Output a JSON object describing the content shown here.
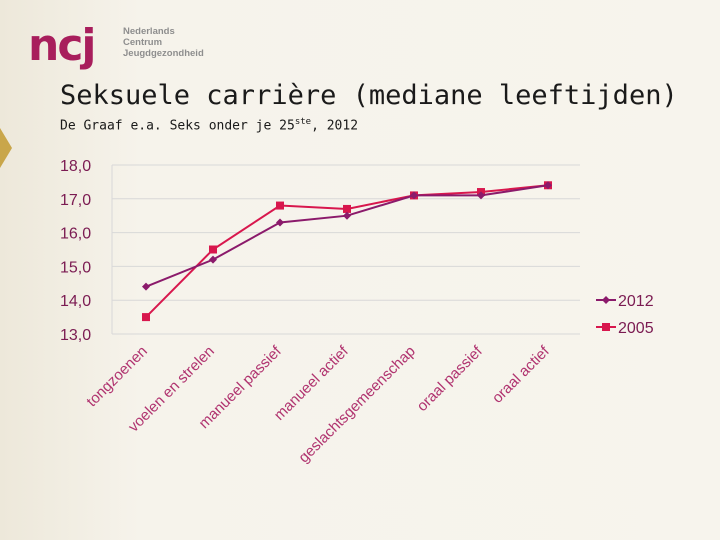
{
  "logo": {
    "letters": "ncj",
    "lines": [
      "Nederlands",
      "Centrum",
      "Jeugdgezondheid"
    ]
  },
  "slide": {
    "title": "Seksuele carrière (mediane leeftijden)",
    "subtitle_main": "De Graaf e.a. Seks onder je 25",
    "subtitle_sup": "ste",
    "subtitle_tail": ", 2012"
  },
  "colors": {
    "brand": "#a81e5c",
    "series_2012": "#8b1a6b",
    "series_2005": "#d8174d",
    "tick_text": "#7b1b52",
    "category_text": "#b0336f",
    "gridline": "#d8d8d8"
  },
  "chart_data": {
    "type": "line",
    "title": "",
    "xlabel": "",
    "ylabel": "",
    "ylim": [
      13.0,
      18.0
    ],
    "yticks": [
      "18,0",
      "17,0",
      "16,0",
      "15,0",
      "14,0",
      "13,0"
    ],
    "grid": true,
    "legend_position": "right",
    "categories": [
      "tongzoenen",
      "voelen en strelen",
      "manueel passief",
      "manueel actief",
      "geslachtsgemeenschap",
      "oraal passief",
      "oraal actief"
    ],
    "series": [
      {
        "name": "2012",
        "marker": "diamond",
        "values": [
          14.4,
          15.2,
          16.3,
          16.5,
          17.1,
          17.1,
          17.4
        ]
      },
      {
        "name": "2005",
        "marker": "square",
        "values": [
          13.5,
          15.5,
          16.8,
          16.7,
          17.1,
          17.2,
          17.4
        ]
      }
    ]
  }
}
